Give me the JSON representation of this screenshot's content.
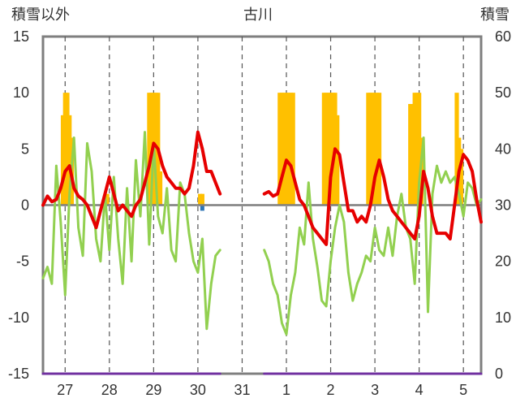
{
  "chart_data": {
    "type": "bar+line",
    "title": "古川",
    "left_axis_label": "積雪以外",
    "right_axis_label": "積雪",
    "y_left": {
      "min": -15,
      "max": 15,
      "ticks": [
        -15,
        -10,
        -5,
        0,
        5,
        10,
        15
      ]
    },
    "y_right": {
      "min": 0,
      "max": 60,
      "ticks": [
        0,
        10,
        20,
        30,
        40,
        50,
        60
      ]
    },
    "day_labels": [
      "27",
      "28",
      "29",
      "30",
      "31",
      "1",
      "2",
      "3",
      "4",
      "5"
    ],
    "x_range": [
      26.5,
      36.4
    ],
    "grid": "dashed vertical at day centers, horizontal zero line",
    "colors": {
      "red_line": "#e60000",
      "green_line": "#92d050",
      "bars": "#ffc000",
      "blue_bar": "#2e75b6",
      "snow_line": "#7030a0",
      "zero_line": "#7f7f7f",
      "frame": "#7f7f7f"
    },
    "series": [
      {
        "key": "red",
        "x": [
          26.5,
          26.6,
          26.7,
          26.8,
          26.9,
          27.0,
          27.1,
          27.2,
          27.3,
          27.4,
          27.5,
          27.6,
          27.7,
          27.8,
          27.9,
          28.0,
          28.1,
          28.2,
          28.3,
          28.4,
          28.5,
          28.6,
          28.7,
          28.8,
          28.9,
          29.0,
          29.1,
          29.2,
          29.3,
          29.4,
          29.5,
          29.6,
          29.7,
          29.8,
          29.9,
          30.0,
          30.1,
          30.2,
          30.3,
          30.4,
          30.5
        ],
        "y": [
          0.0,
          0.8,
          0.3,
          0.5,
          1.5,
          3.0,
          3.5,
          1.5,
          0.8,
          0.5,
          0.0,
          -1.0,
          -2.0,
          -0.5,
          1.0,
          2.5,
          1.0,
          -0.5,
          0.0,
          -0.5,
          -1.0,
          0.0,
          0.5,
          2.0,
          3.5,
          5.5,
          5.0,
          3.5,
          2.5,
          2.0,
          1.5,
          1.5,
          1.0,
          1.5,
          3.5,
          6.5,
          5.0,
          3.0,
          3.0,
          2.0,
          1.0
        ]
      },
      {
        "key": "red",
        "x": [
          31.5,
          31.6,
          31.7,
          31.8,
          31.9,
          32.0,
          32.1,
          32.2,
          32.3,
          32.4,
          32.5,
          32.6,
          32.7,
          32.8,
          32.9,
          33.0,
          33.1,
          33.2,
          33.3,
          33.4,
          33.5,
          33.6,
          33.7,
          33.8,
          33.9,
          34.0,
          34.1,
          34.2,
          34.3,
          34.4,
          34.5,
          34.6,
          34.7,
          34.8,
          34.9,
          35.0,
          35.1,
          35.2,
          35.3,
          35.4,
          35.5,
          35.6,
          35.7,
          35.8,
          35.9,
          36.0,
          36.1,
          36.2,
          36.3,
          36.4
        ],
        "y": [
          1.0,
          1.2,
          0.8,
          1.0,
          2.5,
          4.0,
          3.5,
          2.0,
          0.5,
          0.0,
          -1.0,
          -2.0,
          -2.5,
          -3.0,
          -3.5,
          2.5,
          5.0,
          4.5,
          2.0,
          -0.5,
          -0.5,
          -1.5,
          -1.0,
          -1.5,
          0.0,
          2.5,
          4.0,
          2.5,
          0.5,
          -0.5,
          -1.0,
          -1.5,
          -2.0,
          -2.5,
          -3.0,
          -1.0,
          3.0,
          1.5,
          -1.0,
          -2.5,
          -2.5,
          -2.5,
          -3.0,
          0.0,
          3.0,
          4.5,
          4.0,
          3.0,
          0.5,
          -1.5
        ]
      },
      {
        "key": "green",
        "x": [
          26.5,
          26.6,
          26.7,
          26.8,
          26.9,
          27.0,
          27.1,
          27.2,
          27.3,
          27.4,
          27.5,
          27.6,
          27.7,
          27.8,
          27.9,
          28.0,
          28.1,
          28.2,
          28.3,
          28.4,
          28.5,
          28.6,
          28.7,
          28.8,
          28.9,
          29.0,
          29.1,
          29.2,
          29.3,
          29.4,
          29.5,
          29.6,
          29.7,
          29.8,
          29.9,
          30.0,
          30.1,
          30.2,
          30.3,
          30.4,
          30.5
        ],
        "y": [
          -6.5,
          -5.5,
          -7.0,
          3.5,
          -1.5,
          -8.0,
          1.0,
          6.0,
          -2.0,
          -4.5,
          5.5,
          3.0,
          -3.0,
          -5.0,
          1.0,
          -4.0,
          2.5,
          -3.0,
          -7.0,
          1.5,
          -5.0,
          4.0,
          -1.0,
          6.5,
          -3.5,
          5.5,
          -1.0,
          -2.5,
          1.5,
          -4.0,
          -5.0,
          2.0,
          1.0,
          -2.5,
          -5.0,
          -6.0,
          -3.0,
          -11.0,
          -7.0,
          -4.5,
          -4.0
        ]
      },
      {
        "key": "green",
        "x": [
          31.5,
          31.6,
          31.7,
          31.8,
          31.9,
          32.0,
          32.1,
          32.2,
          32.3,
          32.4,
          32.5,
          32.6,
          32.7,
          32.8,
          32.9,
          33.0,
          33.1,
          33.2,
          33.3,
          33.4,
          33.5,
          33.6,
          33.7,
          33.8,
          33.9,
          34.0,
          34.1,
          34.2,
          34.3,
          34.4,
          34.5,
          34.6,
          34.7,
          34.8,
          34.9,
          35.0,
          35.1,
          35.2,
          35.3,
          35.4,
          35.5,
          35.6,
          35.7,
          35.8,
          35.9,
          36.0,
          36.1,
          36.2,
          36.3,
          36.4
        ],
        "y": [
          -4.0,
          -5.0,
          -7.0,
          -8.0,
          -10.5,
          -11.5,
          -8.0,
          -6.0,
          -2.0,
          -3.5,
          2.0,
          -3.0,
          -5.5,
          -8.5,
          -9.0,
          -5.0,
          -2.0,
          0.0,
          -1.5,
          -6.0,
          -8.5,
          -7.0,
          -6.0,
          -4.5,
          -5.0,
          -2.0,
          -4.0,
          -4.5,
          -2.0,
          -4.5,
          -1.0,
          1.0,
          -2.0,
          -3.0,
          -7.0,
          2.0,
          6.0,
          -9.5,
          1.0,
          3.5,
          2.0,
          3.0,
          2.0,
          2.5,
          1.0,
          -1.0,
          2.0,
          1.5,
          0.0,
          0.5
        ]
      },
      {
        "key": "snow",
        "x": [
          26.5,
          30.5
        ],
        "y": [
          -15,
          -15
        ]
      },
      {
        "key": "snow",
        "x": [
          31.5,
          36.4
        ],
        "y": [
          -15,
          -15
        ]
      }
    ],
    "bars": [
      {
        "x": 26.95,
        "top": 8.0
      },
      {
        "x": 27.0,
        "top": 10.0
      },
      {
        "x": 27.05,
        "top": 10.0
      },
      {
        "x": 27.1,
        "top": 8.0
      },
      {
        "x": 27.15,
        "top": 6.0
      },
      {
        "x": 27.95,
        "top": 1.0
      },
      {
        "x": 28.9,
        "top": 10.0
      },
      {
        "x": 28.95,
        "top": 10.0
      },
      {
        "x": 29.0,
        "top": 10.0
      },
      {
        "x": 29.05,
        "top": 10.0
      },
      {
        "x": 29.1,
        "top": 10.0
      },
      {
        "x": 29.15,
        "top": 3.0
      },
      {
        "x": 30.05,
        "top": 1.0
      },
      {
        "x": 30.1,
        "top": 1.0
      },
      {
        "x": 31.85,
        "top": 10.0
      },
      {
        "x": 31.9,
        "top": 10.0
      },
      {
        "x": 31.95,
        "top": 10.0
      },
      {
        "x": 32.0,
        "top": 10.0
      },
      {
        "x": 32.05,
        "top": 10.0
      },
      {
        "x": 32.1,
        "top": 10.0
      },
      {
        "x": 32.15,
        "top": 10.0
      },
      {
        "x": 32.85,
        "top": 10.0
      },
      {
        "x": 32.9,
        "top": 10.0
      },
      {
        "x": 32.95,
        "top": 10.0
      },
      {
        "x": 33.0,
        "top": 10.0
      },
      {
        "x": 33.05,
        "top": 10.0
      },
      {
        "x": 33.1,
        "top": 10.0
      },
      {
        "x": 33.15,
        "top": 8.0
      },
      {
        "x": 33.85,
        "top": 10.0
      },
      {
        "x": 33.9,
        "top": 10.0
      },
      {
        "x": 33.95,
        "top": 10.0
      },
      {
        "x": 34.0,
        "top": 10.0
      },
      {
        "x": 34.05,
        "top": 10.0
      },
      {
        "x": 34.1,
        "top": 10.0
      },
      {
        "x": 34.8,
        "top": 9.0
      },
      {
        "x": 34.85,
        "top": 9.0
      },
      {
        "x": 34.9,
        "top": 10.0
      },
      {
        "x": 34.95,
        "top": 10.0
      },
      {
        "x": 35.0,
        "top": 10.0
      },
      {
        "x": 35.05,
        "top": 6.0
      },
      {
        "x": 35.85,
        "top": 10.0
      },
      {
        "x": 35.9,
        "top": 6.0
      },
      {
        "x": 35.95,
        "top": 5.0
      }
    ],
    "blue_bars": [
      {
        "x": 30.1,
        "top": -0.5
      }
    ]
  }
}
